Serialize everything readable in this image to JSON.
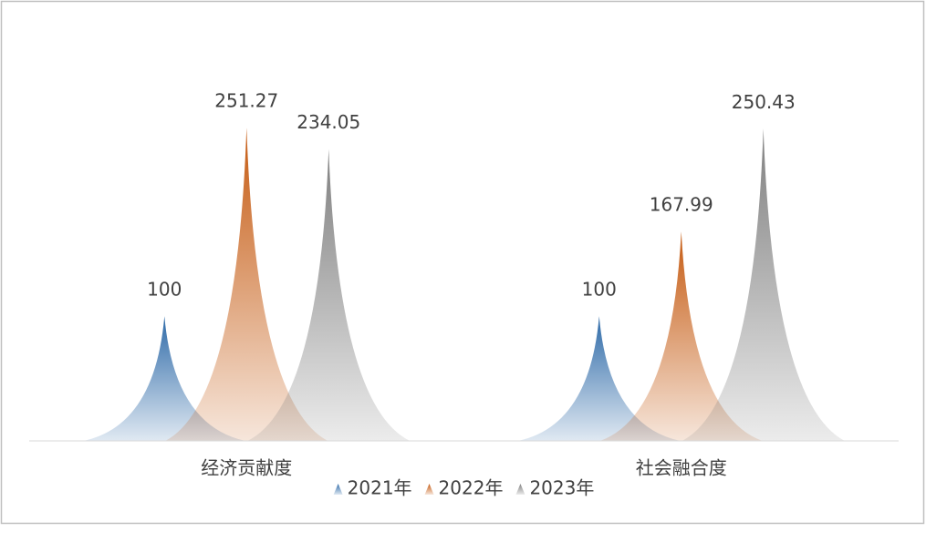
{
  "chart_data": {
    "type": "spike",
    "categories": [
      "经济贡献度",
      "社会融合度"
    ],
    "series": [
      {
        "name": "2021年",
        "color": "#2e6aa8",
        "values": [
          100,
          100
        ]
      },
      {
        "name": "2022年",
        "color": "#c55a11",
        "values": [
          251.27,
          167.99
        ]
      },
      {
        "name": "2023年",
        "color": "#7f7f7f",
        "values": [
          234.05,
          250.43
        ]
      }
    ],
    "ylim": [
      0,
      350
    ],
    "legend": "bottom"
  }
}
